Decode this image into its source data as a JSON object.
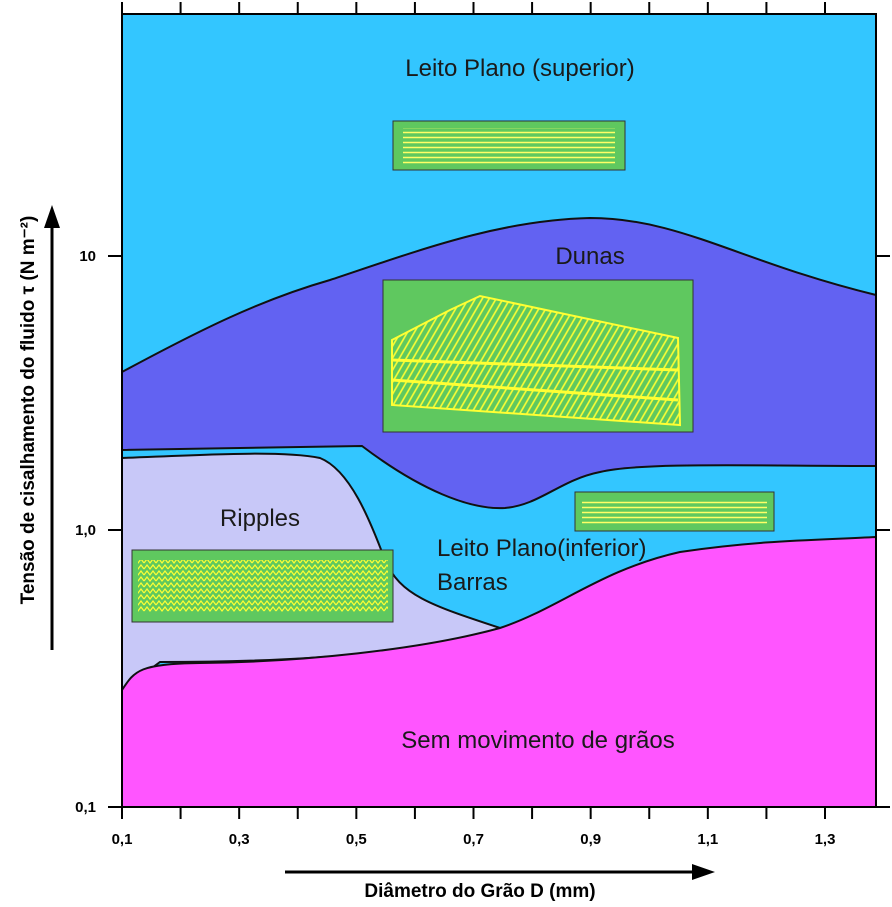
{
  "regions": {
    "upper_plane_bed": "Leito Plano (superior)",
    "dunes": "Dunas",
    "ripples": "Ripples",
    "lower_plane_bed": "Leito Plano(inferior)",
    "bars": "Barras",
    "no_movement": "Sem movimento de grãos"
  },
  "axes": {
    "y_label": "Tensão de cisalhamento do fluido τ (N m⁻²)",
    "x_label": "Diâmetro do Grão D (mm)",
    "x_ticks": [
      "0,1",
      "0,3",
      "0,5",
      "0,7",
      "0,9",
      "1,1",
      "1,3"
    ],
    "y_ticks": [
      "10",
      "1,0",
      "0,1"
    ]
  }
}
